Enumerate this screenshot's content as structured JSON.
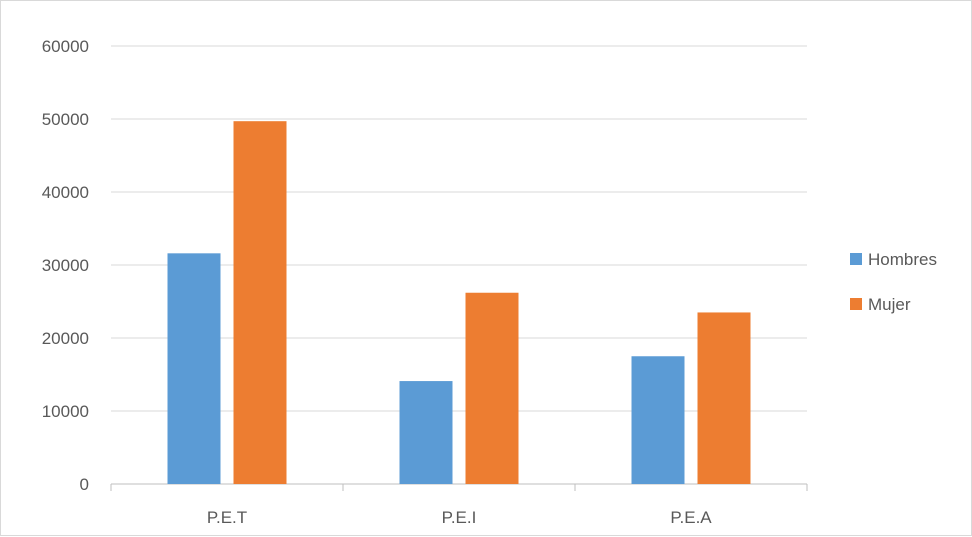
{
  "chart_data": {
    "type": "bar",
    "title": "",
    "xlabel": "",
    "ylabel": "",
    "categories": [
      "P.E.T",
      "P.E.I",
      "P.E.A"
    ],
    "series": [
      {
        "name": "Hombres",
        "values": [
          31600,
          14100,
          17500
        ],
        "color": "#5b9bd5"
      },
      {
        "name": "Mujer",
        "values": [
          49700,
          26200,
          23500
        ],
        "color": "#ed7d31"
      }
    ],
    "ylim": [
      0,
      60000
    ],
    "yticks": [
      0,
      10000,
      20000,
      30000,
      40000,
      50000,
      60000
    ],
    "grid": true,
    "legend_position": "right",
    "colors": {
      "gridline": "#d9d9d9",
      "axis": "#bfbfbf",
      "text": "#595959"
    }
  }
}
